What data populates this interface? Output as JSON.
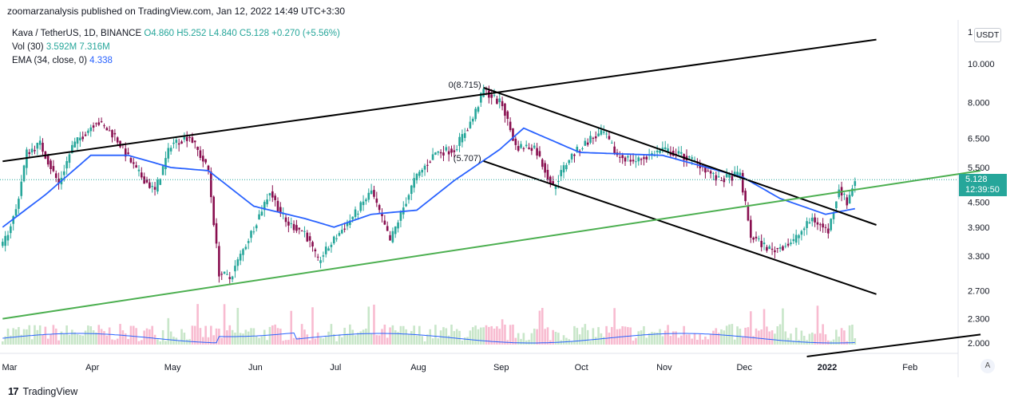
{
  "header": {
    "published": "zoomarzanalysis published on TradingView.com, Jan 12, 2022 14:49 UTC+3:30"
  },
  "legend": {
    "symbol": "Kava / TetherUS, 1D, BINANCE",
    "ohlc": "O4.860  H5.252  L4.840  C5.128  +0.270 (+5.56%)",
    "vol_label": "Vol (30)",
    "vol_v1": "3.592M",
    "vol_v2": "7.316M",
    "ema_label": "EMA (34, close, 0)",
    "ema_value": "4.338"
  },
  "price_axis": {
    "currency": "USDT",
    "top_label": "1",
    "current_price": "5.128",
    "countdown": "12:39:50"
  },
  "footer": {
    "brand": "TradingView",
    "logo": "17"
  },
  "auto_button": "A",
  "chart_data": {
    "type": "candlestick",
    "symbol": "Kava / TetherUS",
    "interval": "1D",
    "exchange": "BINANCE",
    "scale": "log",
    "y_ticks": [
      10.0,
      8.0,
      6.5,
      5.5,
      4.5,
      3.9,
      3.3,
      2.7,
      2.3,
      2.0
    ],
    "y_tick_labels": [
      "10.000",
      "8.000",
      "6.500",
      "5.500",
      "4.500",
      "3.900",
      "3.300",
      "2.700",
      "2.300",
      "2.000"
    ],
    "x_months": [
      {
        "label": "Mar",
        "date": "2021-03-01"
      },
      {
        "label": "Apr",
        "date": "2021-04-01"
      },
      {
        "label": "May",
        "date": "2021-05-01"
      },
      {
        "label": "Jun",
        "date": "2021-06-01"
      },
      {
        "label": "Jul",
        "date": "2021-07-01"
      },
      {
        "label": "Aug",
        "date": "2021-08-01"
      },
      {
        "label": "Sep",
        "date": "2021-09-01"
      },
      {
        "label": "Oct",
        "date": "2021-10-01"
      },
      {
        "label": "Nov",
        "date": "2021-11-01"
      },
      {
        "label": "Dec",
        "date": "2021-12-01"
      },
      {
        "label": "2022",
        "date": "2022-01-01"
      },
      {
        "label": "Feb",
        "date": "2022-02-01"
      }
    ],
    "price_path": [
      {
        "date": "2021-02-27",
        "price": 3.5
      },
      {
        "date": "2021-03-04",
        "price": 4.3
      },
      {
        "date": "2021-03-08",
        "price": 6.0
      },
      {
        "date": "2021-03-13",
        "price": 6.3
      },
      {
        "date": "2021-03-20",
        "price": 5.0
      },
      {
        "date": "2021-03-25",
        "price": 6.2
      },
      {
        "date": "2021-04-03",
        "price": 7.2
      },
      {
        "date": "2021-04-10",
        "price": 6.6
      },
      {
        "date": "2021-04-18",
        "price": 5.4
      },
      {
        "date": "2021-04-25",
        "price": 4.8
      },
      {
        "date": "2021-05-01",
        "price": 6.3
      },
      {
        "date": "2021-05-08",
        "price": 6.6
      },
      {
        "date": "2021-05-15",
        "price": 5.4
      },
      {
        "date": "2021-05-19",
        "price": 3.0
      },
      {
        "date": "2021-05-23",
        "price": 2.9
      },
      {
        "date": "2021-06-01",
        "price": 3.9
      },
      {
        "date": "2021-06-07",
        "price": 4.8
      },
      {
        "date": "2021-06-13",
        "price": 4.0
      },
      {
        "date": "2021-06-20",
        "price": 3.8
      },
      {
        "date": "2021-06-25",
        "price": 3.2
      },
      {
        "date": "2021-07-02",
        "price": 3.7
      },
      {
        "date": "2021-07-10",
        "price": 4.3
      },
      {
        "date": "2021-07-15",
        "price": 4.8
      },
      {
        "date": "2021-07-22",
        "price": 3.6
      },
      {
        "date": "2021-07-31",
        "price": 5.1
      },
      {
        "date": "2021-08-08",
        "price": 6.0
      },
      {
        "date": "2021-08-15",
        "price": 6.1
      },
      {
        "date": "2021-08-22",
        "price": 7.3
      },
      {
        "date": "2021-08-26",
        "price": 8.6
      },
      {
        "date": "2021-09-02",
        "price": 7.9
      },
      {
        "date": "2021-09-07",
        "price": 6.2
      },
      {
        "date": "2021-09-14",
        "price": 6.2
      },
      {
        "date": "2021-09-21",
        "price": 4.9
      },
      {
        "date": "2021-09-27",
        "price": 5.8
      },
      {
        "date": "2021-10-05",
        "price": 6.5
      },
      {
        "date": "2021-10-10",
        "price": 6.7
      },
      {
        "date": "2021-10-15",
        "price": 5.9
      },
      {
        "date": "2021-10-22",
        "price": 5.7
      },
      {
        "date": "2021-11-01",
        "price": 6.1
      },
      {
        "date": "2021-11-08",
        "price": 5.9
      },
      {
        "date": "2021-11-15",
        "price": 5.6
      },
      {
        "date": "2021-11-22",
        "price": 5.1
      },
      {
        "date": "2021-11-30",
        "price": 5.3
      },
      {
        "date": "2021-12-04",
        "price": 3.7
      },
      {
        "date": "2021-12-12",
        "price": 3.4
      },
      {
        "date": "2021-12-20",
        "price": 3.6
      },
      {
        "date": "2021-12-27",
        "price": 4.1
      },
      {
        "date": "2022-01-02",
        "price": 3.8
      },
      {
        "date": "2022-01-06",
        "price": 4.9
      },
      {
        "date": "2022-01-09",
        "price": 4.5
      },
      {
        "date": "2022-01-12",
        "price": 5.128
      }
    ],
    "ema_path": [
      {
        "date": "2021-02-27",
        "price": 3.9
      },
      {
        "date": "2021-03-15",
        "price": 4.7
      },
      {
        "date": "2021-04-01",
        "price": 5.9
      },
      {
        "date": "2021-04-15",
        "price": 5.9
      },
      {
        "date": "2021-05-01",
        "price": 5.5
      },
      {
        "date": "2021-05-15",
        "price": 5.4
      },
      {
        "date": "2021-06-01",
        "price": 4.4
      },
      {
        "date": "2021-06-20",
        "price": 4.1
      },
      {
        "date": "2021-07-01",
        "price": 3.9
      },
      {
        "date": "2021-07-15",
        "price": 4.2
      },
      {
        "date": "2021-08-01",
        "price": 4.3
      },
      {
        "date": "2021-08-15",
        "price": 5.1
      },
      {
        "date": "2021-09-01",
        "price": 6.1
      },
      {
        "date": "2021-09-10",
        "price": 6.9
      },
      {
        "date": "2021-10-01",
        "price": 6.0
      },
      {
        "date": "2021-11-01",
        "price": 5.9
      },
      {
        "date": "2021-12-01",
        "price": 5.2
      },
      {
        "date": "2021-12-15",
        "price": 4.6
      },
      {
        "date": "2022-01-01",
        "price": 4.2
      },
      {
        "date": "2022-01-12",
        "price": 4.338
      }
    ],
    "trendlines": [
      {
        "name": "upper-resistance",
        "color": "#000000",
        "p1": {
          "date": "2021-02-27",
          "price": 5.7
        },
        "p2": {
          "date": "2022-01-20",
          "price": 11.5
        }
      },
      {
        "name": "channel-top",
        "color": "#000000",
        "p1": {
          "date": "2021-08-26",
          "price": 8.715
        },
        "p2": {
          "date": "2022-01-20",
          "price": 3.95
        }
      },
      {
        "name": "channel-bottom",
        "color": "#000000",
        "p1": {
          "date": "2021-08-26",
          "price": 5.707
        },
        "p2": {
          "date": "2022-01-20",
          "price": 2.65
        }
      },
      {
        "name": "green-support",
        "color": "#4caf50",
        "p1": {
          "date": "2021-02-27",
          "price": 2.3
        },
        "p2": {
          "date": "2022-02-28",
          "price": 5.4
        }
      },
      {
        "name": "lower-support",
        "color": "#000000",
        "p1": {
          "date": "2021-12-25",
          "price": 1.85
        },
        "p2": {
          "date": "2022-02-28",
          "price": 2.1
        }
      }
    ],
    "annotations": [
      {
        "text": "0(8.715)",
        "date": "2021-08-26",
        "price": 8.715
      },
      {
        "text": "(5.707)",
        "date": "2021-08-26",
        "price": 5.707
      }
    ],
    "current_price_line": 5.128,
    "volume_average_label": "Vol (30)",
    "colors": {
      "up": "#26a69a",
      "down": "#880e4f",
      "ema": "#2962ff",
      "vol_up": "#c8e6c9",
      "vol_down": "#f8bbd0",
      "vol_ma": "#2962ff"
    }
  }
}
